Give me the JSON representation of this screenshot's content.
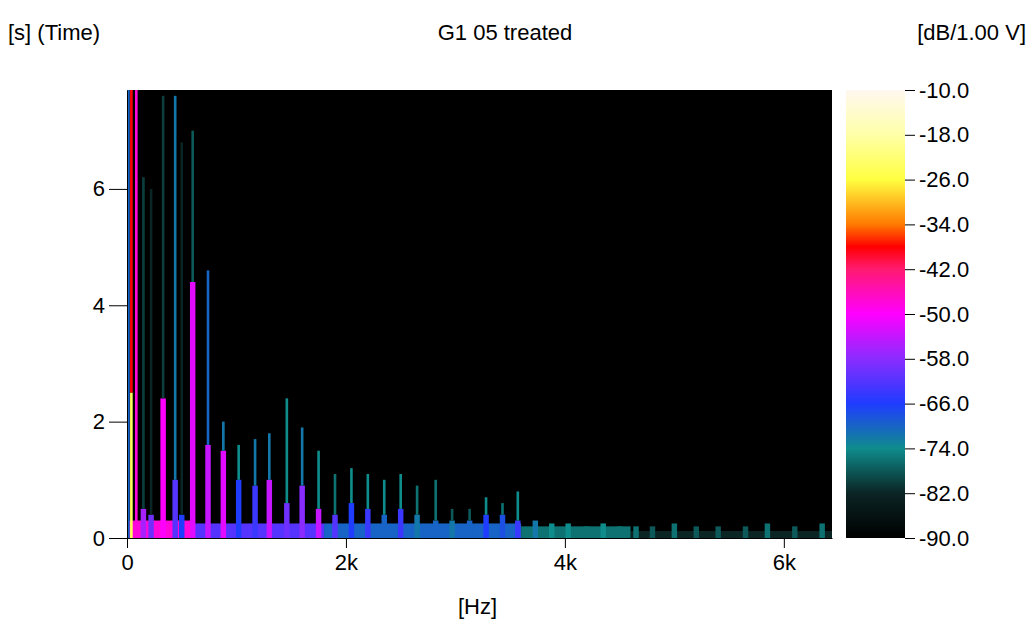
{
  "chart_data": {
    "type": "heatmap",
    "title": "G1 05 treated",
    "x_label": "[Hz]",
    "y_label": "[s] (Time)",
    "colorbar_label": "[dB/1.00 V]",
    "xlim": [
      0,
      6440
    ],
    "ylim": [
      0,
      7.7
    ],
    "xticks": [
      0,
      {
        "value": 2000,
        "label": "2k"
      },
      {
        "value": 4000,
        "label": "4k"
      },
      {
        "value": 6000,
        "label": "6k"
      }
    ],
    "yticks": [
      0,
      2,
      4,
      6
    ],
    "colorbar_lim": [
      -90,
      -10
    ],
    "colorbar_ticks": [
      {
        "value": -10,
        "label": "-10.0"
      },
      {
        "value": -18,
        "label": "-18.0"
      },
      {
        "value": -26,
        "label": "-26.0"
      },
      {
        "value": -34,
        "label": "-34.0"
      },
      {
        "value": -42,
        "label": "-42.0"
      },
      {
        "value": -50,
        "label": "-50.0"
      },
      {
        "value": -58,
        "label": "-58.0"
      },
      {
        "value": -66,
        "label": "-66.0"
      },
      {
        "value": -74,
        "label": "-74.0"
      },
      {
        "value": -82,
        "label": "-82.0"
      },
      {
        "value": -90,
        "label": "-90.0"
      }
    ],
    "cells": [
      {
        "f0": 4600,
        "f1": 6440,
        "t0": 0,
        "t1": 0.12,
        "db": -82
      },
      {
        "f0": 3600,
        "f1": 4600,
        "t0": 0,
        "t1": 0.2,
        "db": -76
      },
      {
        "f0": 1800,
        "f1": 3600,
        "t0": 0,
        "t1": 0.25,
        "db": -70
      },
      {
        "f0": 600,
        "f1": 1800,
        "t0": 0,
        "t1": 0.25,
        "db": -62
      },
      {
        "f0": 0,
        "f1": 600,
        "t0": 0,
        "t1": 0.3,
        "db": -48
      },
      {
        "f0": 0,
        "f1": 25,
        "t0": 0,
        "t1": 7.7,
        "db": -70
      },
      {
        "f0": 28,
        "f1": 52,
        "t0": 0,
        "t1": 2.5,
        "db": -24
      },
      {
        "f0": 28,
        "f1": 52,
        "t0": 2.5,
        "t1": 7.7,
        "db": -38
      },
      {
        "f0": 73,
        "f1": 97,
        "t0": 0,
        "t1": 7.7,
        "db": -48
      },
      {
        "f0": 125,
        "f1": 175,
        "t0": 0,
        "t1": 0.5,
        "db": -56
      },
      {
        "f0": 138,
        "f1": 162,
        "t0": 0.5,
        "t1": 6.2,
        "db": -80
      },
      {
        "f0": 195,
        "f1": 245,
        "t0": 0,
        "t1": 0.4,
        "db": -60
      },
      {
        "f0": 208,
        "f1": 232,
        "t0": 0.4,
        "t1": 6.0,
        "db": -82
      },
      {
        "f0": 305,
        "f1": 355,
        "t0": 0,
        "t1": 2.4,
        "db": -50
      },
      {
        "f0": 318,
        "f1": 342,
        "t0": 2.4,
        "t1": 7.6,
        "db": -80
      },
      {
        "f0": 415,
        "f1": 465,
        "t0": 0,
        "t1": 1.0,
        "db": -62
      },
      {
        "f0": 428,
        "f1": 452,
        "t0": 1.0,
        "t1": 7.6,
        "db": -72
      },
      {
        "f0": 475,
        "f1": 525,
        "t0": 0,
        "t1": 0.4,
        "db": -66
      },
      {
        "f0": 488,
        "f1": 512,
        "t0": 0.4,
        "t1": 6.8,
        "db": -82
      },
      {
        "f0": 575,
        "f1": 625,
        "t0": 0,
        "t1": 4.4,
        "db": -52
      },
      {
        "f0": 588,
        "f1": 612,
        "t0": 4.4,
        "t1": 7.0,
        "db": -78
      },
      {
        "f0": 715,
        "f1": 765,
        "t0": 0,
        "t1": 1.6,
        "db": -54
      },
      {
        "f0": 728,
        "f1": 752,
        "t0": 1.6,
        "t1": 4.6,
        "db": -70
      },
      {
        "f0": 855,
        "f1": 905,
        "t0": 0,
        "t1": 1.5,
        "db": -52
      },
      {
        "f0": 868,
        "f1": 892,
        "t0": 1.5,
        "t1": 2.0,
        "db": -72
      },
      {
        "f0": 995,
        "f1": 1045,
        "t0": 0,
        "t1": 1.0,
        "db": -66
      },
      {
        "f0": 1008,
        "f1": 1032,
        "t0": 1.0,
        "t1": 1.6,
        "db": -74
      },
      {
        "f0": 1145,
        "f1": 1195,
        "t0": 0,
        "t1": 0.9,
        "db": -64
      },
      {
        "f0": 1158,
        "f1": 1182,
        "t0": 0.9,
        "t1": 1.7,
        "db": -72
      },
      {
        "f0": 1275,
        "f1": 1325,
        "t0": 0,
        "t1": 1.0,
        "db": -54
      },
      {
        "f0": 1288,
        "f1": 1312,
        "t0": 1.0,
        "t1": 1.8,
        "db": -72
      },
      {
        "f0": 1435,
        "f1": 1485,
        "t0": 0,
        "t1": 0.6,
        "db": -60
      },
      {
        "f0": 1448,
        "f1": 1472,
        "t0": 0.6,
        "t1": 2.4,
        "db": -74
      },
      {
        "f0": 1575,
        "f1": 1625,
        "t0": 0,
        "t1": 0.9,
        "db": -58
      },
      {
        "f0": 1588,
        "f1": 1612,
        "t0": 0.9,
        "t1": 1.9,
        "db": -72
      },
      {
        "f0": 1725,
        "f1": 1775,
        "t0": 0,
        "t1": 0.5,
        "db": -54
      },
      {
        "f0": 1738,
        "f1": 1762,
        "t0": 0.5,
        "t1": 1.5,
        "db": -74
      },
      {
        "f0": 1875,
        "f1": 1925,
        "t0": 0,
        "t1": 0.4,
        "db": -62
      },
      {
        "f0": 1888,
        "f1": 1912,
        "t0": 0.4,
        "t1": 1.1,
        "db": -76
      },
      {
        "f0": 2025,
        "f1": 2075,
        "t0": 0,
        "t1": 0.6,
        "db": -66
      },
      {
        "f0": 2038,
        "f1": 2062,
        "t0": 0.6,
        "t1": 1.2,
        "db": -74
      },
      {
        "f0": 2175,
        "f1": 2225,
        "t0": 0,
        "t1": 0.5,
        "db": -64
      },
      {
        "f0": 2188,
        "f1": 2212,
        "t0": 0.5,
        "t1": 1.1,
        "db": -74
      },
      {
        "f0": 2325,
        "f1": 2375,
        "t0": 0,
        "t1": 0.4,
        "db": -70
      },
      {
        "f0": 2338,
        "f1": 2362,
        "t0": 0.4,
        "t1": 1.0,
        "db": -74
      },
      {
        "f0": 2475,
        "f1": 2525,
        "t0": 0,
        "t1": 0.5,
        "db": -64
      },
      {
        "f0": 2488,
        "f1": 2512,
        "t0": 0.5,
        "t1": 1.1,
        "db": -74
      },
      {
        "f0": 2625,
        "f1": 2675,
        "t0": 0,
        "t1": 0.4,
        "db": -72
      },
      {
        "f0": 2638,
        "f1": 2662,
        "t0": 0.4,
        "t1": 0.9,
        "db": -76
      },
      {
        "f0": 2795,
        "f1": 2845,
        "t0": 0,
        "t1": 0.3,
        "db": -70
      },
      {
        "f0": 2808,
        "f1": 2832,
        "t0": 0.3,
        "t1": 1.0,
        "db": -76
      },
      {
        "f0": 2945,
        "f1": 2995,
        "t0": 0,
        "t1": 0.3,
        "db": -72
      },
      {
        "f0": 2958,
        "f1": 2982,
        "t0": 0.3,
        "t1": 0.5,
        "db": -78
      },
      {
        "f0": 3105,
        "f1": 3155,
        "t0": 0,
        "t1": 0.3,
        "db": -70
      },
      {
        "f0": 3118,
        "f1": 3142,
        "t0": 0.3,
        "t1": 0.5,
        "db": -78
      },
      {
        "f0": 3255,
        "f1": 3305,
        "t0": 0,
        "t1": 0.4,
        "db": -66
      },
      {
        "f0": 3268,
        "f1": 3292,
        "t0": 0.4,
        "t1": 0.7,
        "db": -74
      },
      {
        "f0": 3405,
        "f1": 3455,
        "t0": 0,
        "t1": 0.4,
        "db": -68
      },
      {
        "f0": 3418,
        "f1": 3442,
        "t0": 0.4,
        "t1": 0.6,
        "db": -76
      },
      {
        "f0": 3545,
        "f1": 3595,
        "t0": 0,
        "t1": 0.3,
        "db": -64
      },
      {
        "f0": 3558,
        "f1": 3582,
        "t0": 0.3,
        "t1": 0.8,
        "db": -74
      },
      {
        "f0": 3705,
        "f1": 3755,
        "t0": 0,
        "t1": 0.3,
        "db": -72
      },
      {
        "f0": 3855,
        "f1": 3905,
        "t0": 0,
        "t1": 0.25,
        "db": -74
      },
      {
        "f0": 4005,
        "f1": 4055,
        "t0": 0,
        "t1": 0.25,
        "db": -74
      },
      {
        "f0": 4175,
        "f1": 4225,
        "t0": 0,
        "t1": 0.2,
        "db": -76
      },
      {
        "f0": 4325,
        "f1": 4375,
        "t0": 0,
        "t1": 0.25,
        "db": -74
      },
      {
        "f0": 4475,
        "f1": 4525,
        "t0": 0,
        "t1": 0.2,
        "db": -76
      },
      {
        "f0": 4625,
        "f1": 4675,
        "t0": 0,
        "t1": 0.2,
        "db": -76
      },
      {
        "f0": 4775,
        "f1": 4825,
        "t0": 0,
        "t1": 0.2,
        "db": -78
      },
      {
        "f0": 4975,
        "f1": 5025,
        "t0": 0,
        "t1": 0.25,
        "db": -76
      },
      {
        "f0": 5175,
        "f1": 5225,
        "t0": 0,
        "t1": 0.2,
        "db": -78
      },
      {
        "f0": 5375,
        "f1": 5425,
        "t0": 0,
        "t1": 0.2,
        "db": -78
      },
      {
        "f0": 5625,
        "f1": 5675,
        "t0": 0,
        "t1": 0.2,
        "db": -78
      },
      {
        "f0": 5825,
        "f1": 5875,
        "t0": 0,
        "t1": 0.25,
        "db": -76
      },
      {
        "f0": 6075,
        "f1": 6125,
        "t0": 0,
        "t1": 0.2,
        "db": -78
      },
      {
        "f0": 6325,
        "f1": 6375,
        "t0": 0,
        "t1": 0.25,
        "db": -76
      }
    ]
  }
}
